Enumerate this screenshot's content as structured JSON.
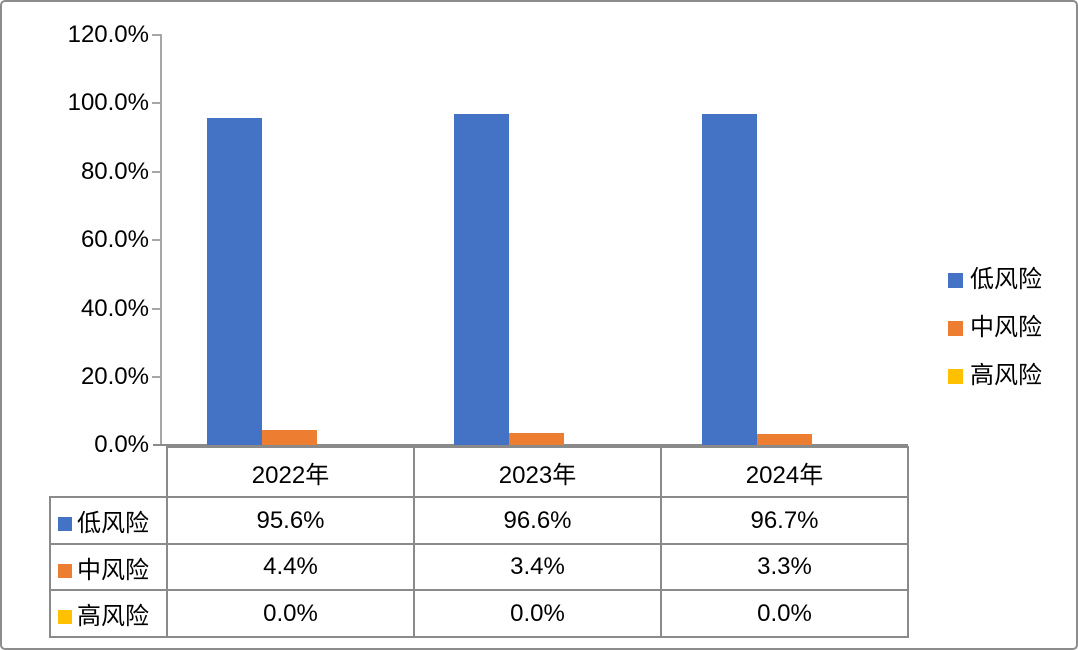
{
  "chart_data": {
    "type": "bar",
    "title": "",
    "categories": [
      "2022年",
      "2023年",
      "2024年"
    ],
    "series": [
      {
        "name": "低风险",
        "color": "#4472C4",
        "values": [
          95.6,
          96.6,
          96.7
        ],
        "values_fmt": [
          "95.6%",
          "96.6%",
          "96.7%"
        ]
      },
      {
        "name": "中风险",
        "color": "#ED7D31",
        "values": [
          4.4,
          3.4,
          3.3
        ],
        "values_fmt": [
          "4.4%",
          "3.4%",
          "3.3%"
        ]
      },
      {
        "name": "高风险",
        "color": "#FFC000",
        "values": [
          0.0,
          0.0,
          0.0
        ],
        "values_fmt": [
          "0.0%",
          "0.0%",
          "0.0%"
        ]
      }
    ],
    "ylim": [
      0,
      120
    ],
    "ytick_labels": [
      "120.0%",
      "100.0%",
      "80.0%",
      "60.0%",
      "40.0%",
      "20.0%",
      "0.0%"
    ],
    "grid": false,
    "legend_position": "right",
    "data_table_shown": true
  },
  "colors": {
    "axis": "#a6a6a6",
    "table_border": "#8a8a8a",
    "frame_border": "#8c8c8c",
    "background": "#ffffff",
    "text": "#000000"
  }
}
